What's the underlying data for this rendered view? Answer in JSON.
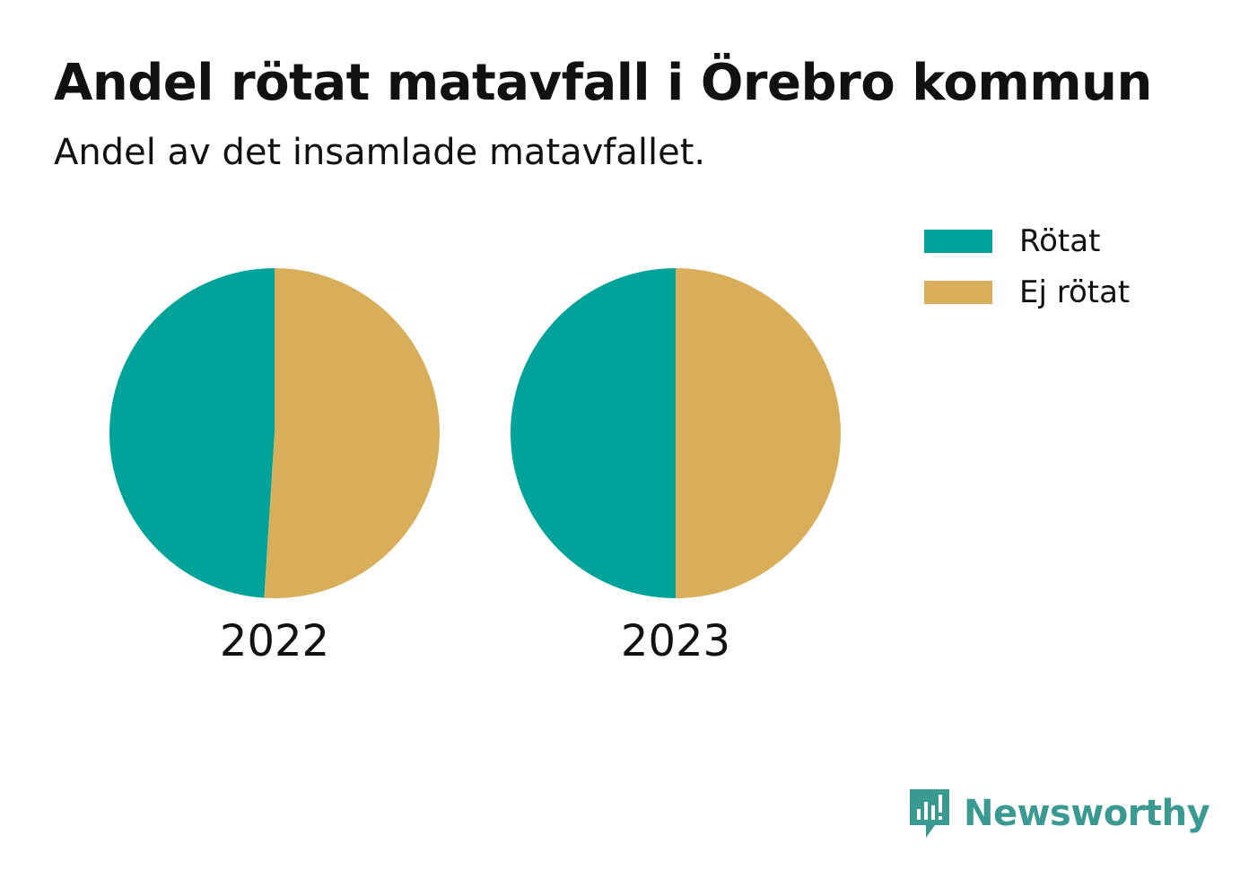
{
  "title": "Andel rötat matavfall i Örebro kommun",
  "subtitle": "Andel av det insamlade matavfallet.",
  "colors": {
    "rotat": "#00a39a",
    "ej_rotat": "#d9ae5b",
    "brand": "#3a9a92"
  },
  "legend": [
    {
      "label": "Rötat",
      "color": "#00a39a"
    },
    {
      "label": "Ej rötat",
      "color": "#d9ae5b"
    }
  ],
  "chart_data": {
    "type": "pie",
    "title": "Andel rötat matavfall i Örebro kommun",
    "subtitle": "Andel av det insamlade matavfallet.",
    "legend_position": "top-right",
    "series_names": [
      "Rötat",
      "Ej rötat"
    ],
    "pies": [
      {
        "label": "2022",
        "slices": [
          {
            "name": "Rötat",
            "value": 49
          },
          {
            "name": "Ej rötat",
            "value": 51
          }
        ]
      },
      {
        "label": "2023",
        "slices": [
          {
            "name": "Rötat",
            "value": 50
          },
          {
            "name": "Ej rötat",
            "value": 50
          }
        ]
      }
    ]
  },
  "brand": {
    "name": "Newsworthy",
    "icon": "newsworthy-logo-icon"
  }
}
